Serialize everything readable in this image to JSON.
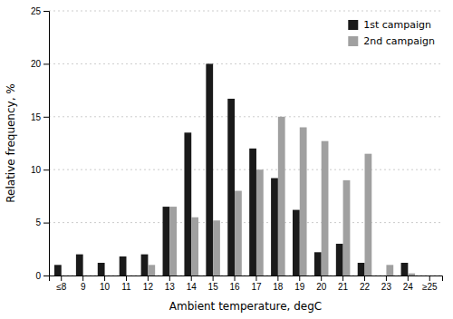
{
  "chart_data": {
    "type": "bar",
    "categories": [
      "≤8",
      "9",
      "10",
      "11",
      "12",
      "13",
      "14",
      "15",
      "16",
      "17",
      "18",
      "19",
      "20",
      "21",
      "22",
      "23",
      "24",
      "≥25"
    ],
    "series": [
      {
        "name": "1st campaign",
        "color": "#1a1a1a",
        "values": [
          1,
          2,
          1.2,
          1.8,
          2,
          6.5,
          13.5,
          20,
          16.7,
          12,
          9.2,
          6.2,
          2.2,
          3,
          1.2,
          0,
          1.2,
          0
        ]
      },
      {
        "name": "2nd campaign",
        "color": "#a0a0a0",
        "values": [
          0,
          0,
          0,
          0,
          1,
          6.5,
          5.5,
          5.2,
          8,
          10,
          15,
          14,
          12.7,
          9,
          11.5,
          1,
          0.2,
          0
        ]
      }
    ],
    "xlabel": "Ambient temperature, degC",
    "ylabel": "Relative frequency, %",
    "ylim": [
      0,
      25
    ],
    "yticks": [
      0,
      5,
      10,
      15,
      20,
      25
    ],
    "grid": true,
    "legend": "top-right"
  }
}
